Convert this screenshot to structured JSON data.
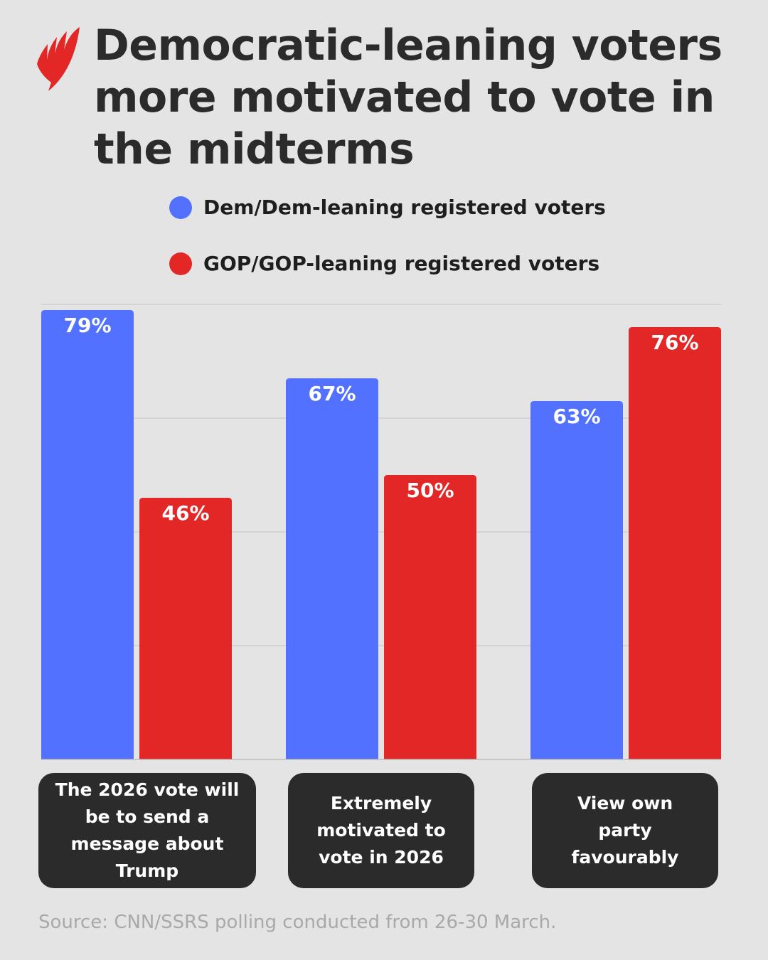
{
  "logo": {
    "name": "sbs-logo",
    "color": "#e32727"
  },
  "title": "Democratic-leaning voters more motivated to vote in the midterms",
  "source": "Source: CNN/SSRS polling conducted from 26-30 March.",
  "chart_data": {
    "type": "bar",
    "title": "Democratic-leaning voters more motivated to vote in the midterms",
    "categories": [
      "The 2026 vote will be to send a message about Trump",
      "Extremely motivated to vote in 2026",
      "View own party favourably"
    ],
    "series": [
      {
        "name": "Dem/Dem-leaning registered voters",
        "color": "#5271ff",
        "values": [
          79,
          67,
          63
        ],
        "labels": [
          "79%",
          "67%",
          "63%"
        ]
      },
      {
        "name": "GOP/GOP-leaning registered voters",
        "color": "#e32727",
        "values": [
          46,
          50,
          76
        ],
        "labels": [
          "46%",
          "50%",
          "76%"
        ]
      }
    ],
    "ylim": [
      0,
      80
    ],
    "gridlines": [
      20,
      40,
      60,
      80
    ],
    "grid": true,
    "legend": "top",
    "unit": "%"
  }
}
